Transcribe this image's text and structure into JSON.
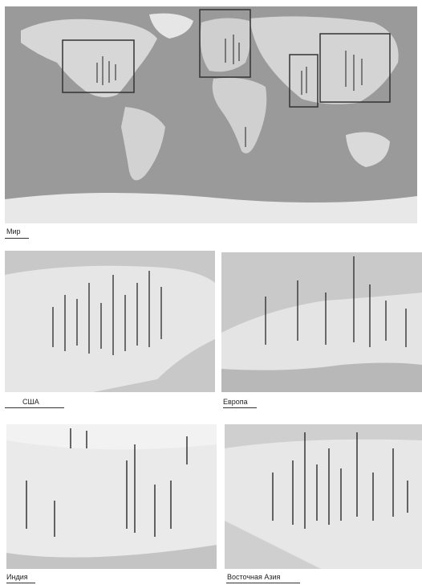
{
  "captions": {
    "world": "Мир",
    "usa": "США",
    "europe": "Европа",
    "india": "Индия",
    "east_asia": "Восточная Азия"
  }
}
